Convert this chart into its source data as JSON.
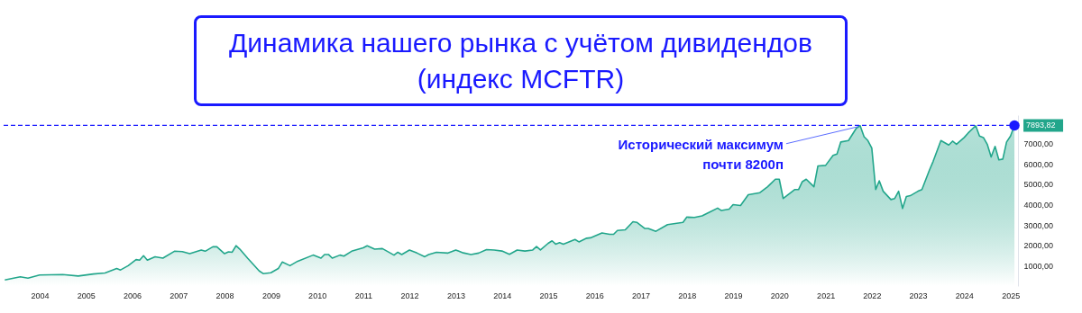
{
  "chart_data": {
    "type": "area",
    "title": "Динамика нашего рынка с учётом дивидендов\n(индекс MCFTR)",
    "x": [
      "2003-04",
      "2003-08",
      "2003-10",
      "2004-01",
      "2004-07",
      "2004-11",
      "2005-03",
      "2005-06",
      "2005-09",
      "2005-10",
      "2005-12",
      "2006-02",
      "2006-03",
      "2006-04",
      "2006-05",
      "2006-07",
      "2006-09",
      "2006-12",
      "2007-02",
      "2007-04",
      "2007-07",
      "2007-08",
      "2007-10",
      "2007-11",
      "2008-01",
      "2008-02",
      "2008-03",
      "2008-04",
      "2008-05",
      "2008-07",
      "2008-10",
      "2008-11",
      "2009-01",
      "2009-03",
      "2009-04",
      "2009-06",
      "2009-08",
      "2009-12",
      "2010-02",
      "2010-03",
      "2010-04",
      "2010-05",
      "2010-07",
      "2010-08",
      "2010-10",
      "2011-01",
      "2011-02",
      "2011-04",
      "2011-06",
      "2011-09",
      "2011-10",
      "2011-11",
      "2012-01",
      "2012-03",
      "2012-05",
      "2012-06",
      "2012-08",
      "2012-11",
      "2013-01",
      "2013-03",
      "2013-05",
      "2013-07",
      "2013-09",
      "2013-11",
      "2014-01",
      "2014-03",
      "2014-05",
      "2014-07",
      "2014-09",
      "2014-10",
      "2014-11",
      "2015-01",
      "2015-02",
      "2015-03",
      "2015-04",
      "2015-05",
      "2015-08",
      "2015-09",
      "2015-11",
      "2015-12",
      "2016-03",
      "2016-05",
      "2016-06",
      "2016-07",
      "2016-09",
      "2016-11",
      "2016-12",
      "2017-02",
      "2017-03",
      "2017-05",
      "2017-08",
      "2017-12",
      "2018-01",
      "2018-03",
      "2018-05",
      "2018-07",
      "2018-09",
      "2018-10",
      "2018-12",
      "2019-01",
      "2019-03",
      "2019-05",
      "2019-08",
      "2019-10",
      "2019-12",
      "2020-01",
      "2020-02",
      "2020-05",
      "2020-06",
      "2020-07",
      "2020-08",
      "2020-10",
      "2020-11",
      "2021-01",
      "2021-03",
      "2021-04",
      "2021-05",
      "2021-07",
      "2021-09",
      "2021-10",
      "2021-11",
      "2021-12",
      "2022-01",
      "2022-02",
      "2022-03",
      "2022-04",
      "2022-06",
      "2022-07",
      "2022-08",
      "2022-09",
      "2022-10",
      "2022-11",
      "2023-01",
      "2023-02",
      "2023-04",
      "2023-05",
      "2023-07",
      "2023-09",
      "2023-10",
      "2023-11",
      "2024-01",
      "2024-02",
      "2024-04",
      "2024-05",
      "2024-06",
      "2024-07",
      "2024-08",
      "2024-09",
      "2024-10",
      "2024-11",
      "2024-12",
      "2025-01",
      "2025-02"
    ],
    "series": [
      {
        "color": "#22a68b",
        "values": [
          300,
          450,
          390,
          540,
          565,
          490,
          590,
          640,
          860,
          790,
          1000,
          1300,
          1270,
          1490,
          1270,
          1440,
          1370,
          1710,
          1690,
          1590,
          1770,
          1710,
          1930,
          1930,
          1590,
          1680,
          1660,
          1980,
          1810,
          1370,
          740,
          610,
          650,
          860,
          1180,
          1000,
          1220,
          1520,
          1370,
          1550,
          1550,
          1370,
          1520,
          1470,
          1710,
          1880,
          1980,
          1810,
          1840,
          1520,
          1660,
          1550,
          1770,
          1620,
          1440,
          1550,
          1660,
          1620,
          1770,
          1630,
          1550,
          1620,
          1790,
          1770,
          1720,
          1560,
          1770,
          1720,
          1770,
          1940,
          1770,
          2100,
          2220,
          2060,
          2130,
          2060,
          2290,
          2170,
          2350,
          2370,
          2610,
          2540,
          2540,
          2730,
          2760,
          3160,
          3130,
          2830,
          2830,
          2690,
          3020,
          3130,
          3390,
          3370,
          3450,
          3640,
          3830,
          3710,
          3780,
          4000,
          3960,
          4490,
          4590,
          4880,
          5250,
          5250,
          4300,
          4740,
          4740,
          5130,
          5250,
          4880,
          5900,
          5930,
          6420,
          6490,
          7080,
          7150,
          7760,
          7880,
          7340,
          7150,
          6780,
          4740,
          5170,
          4660,
          4250,
          4300,
          4660,
          3810,
          4400,
          4440,
          4660,
          4740,
          5690,
          6130,
          7150,
          6930,
          7120,
          6970,
          7300,
          7520,
          7880,
          7370,
          7300,
          6970,
          6340,
          6860,
          6200,
          6240,
          7080,
          7370,
          7893.82
        ],
        "value_labels": [
          null,
          null,
          null,
          null,
          null,
          null,
          null,
          null,
          null,
          null,
          null,
          null,
          null,
          null,
          null,
          null,
          null,
          null,
          null,
          null,
          null,
          null,
          null,
          null,
          null,
          null,
          null,
          null,
          null,
          null,
          null,
          null,
          null,
          null,
          null,
          null,
          null,
          null,
          null,
          null,
          null,
          null,
          null,
          null,
          null,
          null,
          null,
          null,
          null,
          null,
          null,
          null,
          null,
          null,
          null,
          null,
          null,
          null,
          null,
          null,
          null,
          null,
          null,
          null,
          null,
          null,
          null,
          null,
          null,
          null,
          null,
          null,
          null,
          null,
          null,
          null,
          null,
          null,
          null,
          null,
          null,
          null,
          null,
          null,
          null,
          null,
          null,
          null,
          null,
          null,
          null,
          null,
          null,
          null,
          null,
          null,
          null,
          null,
          null,
          null,
          null,
          null,
          null,
          null,
          null,
          null,
          null,
          null,
          null,
          null,
          null,
          null,
          null,
          null,
          null,
          null,
          null,
          null,
          null,
          null,
          null,
          null,
          null,
          null,
          null,
          null,
          null,
          null,
          null,
          null,
          null,
          null,
          null,
          null,
          null,
          null,
          null,
          null,
          null,
          null,
          null,
          null,
          null,
          null,
          null,
          null,
          null,
          null,
          null,
          null,
          null,
          null,
          "7893,82"
        ]
      }
    ],
    "xlim": [
      "2003-03",
      "2025-03"
    ],
    "xticks": [
      "2004",
      "2005",
      "2006",
      "2007",
      "2008",
      "2009",
      "2010",
      "2011",
      "2012",
      "2013",
      "2014",
      "2015",
      "2016",
      "2017",
      "2018",
      "2019",
      "2020",
      "2021",
      "2022",
      "2023",
      "2024",
      "2025"
    ],
    "ylim": [
      0,
      8400
    ],
    "yticks": [
      {
        "value": 1000,
        "label": "1000,00"
      },
      {
        "value": 2000,
        "label": "2000,00"
      },
      {
        "value": 3000,
        "label": "3000,00"
      },
      {
        "value": 4000,
        "label": "4000,00"
      },
      {
        "value": 5000,
        "label": "5000,00"
      },
      {
        "value": 6000,
        "label": "6000,00"
      },
      {
        "value": 7000,
        "label": "7000,00"
      }
    ],
    "ref_lines": [
      {
        "axis": "y",
        "value": 7900,
        "color": "#1a1aff",
        "line_style": "dashed"
      }
    ],
    "annotations": [
      {
        "text": "Исторический максимум\nпочти 8200п",
        "x": "2021-10",
        "y": 7880
      }
    ]
  }
}
